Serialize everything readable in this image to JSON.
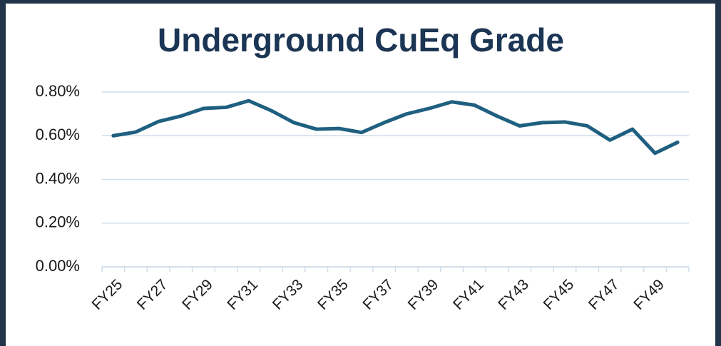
{
  "chart_data": {
    "type": "line",
    "title": "Underground CuEq Grade",
    "categories": [
      "FY25",
      null,
      "FY27",
      null,
      "FY29",
      null,
      "FY31",
      null,
      "FY33",
      null,
      "FY35",
      null,
      "FY37",
      null,
      "FY39",
      null,
      "FY41",
      null,
      "FY43",
      null,
      "FY45",
      null,
      "FY47",
      null,
      "FY49",
      null
    ],
    "series": [
      {
        "name": "Underground CuEq Grade",
        "color": "#1f5f80",
        "values": [
          0.6,
          0.617,
          0.665,
          0.69,
          0.725,
          0.73,
          0.76,
          0.715,
          0.66,
          0.63,
          0.633,
          0.615,
          0.66,
          0.7,
          0.725,
          0.755,
          0.74,
          0.69,
          0.645,
          0.66,
          0.663,
          0.645,
          0.58,
          0.63,
          0.52,
          0.57
        ]
      }
    ],
    "ylim": [
      0,
      0.8
    ],
    "yticks": [
      {
        "value": 0,
        "label": "0.00%"
      },
      {
        "value": 0.2,
        "label": "0.20%"
      },
      {
        "value": 0.4,
        "label": "0.40%"
      },
      {
        "value": 0.6,
        "label": "0.60%"
      },
      {
        "value": 0.8,
        "label": "0.80%"
      }
    ],
    "grid": true
  }
}
